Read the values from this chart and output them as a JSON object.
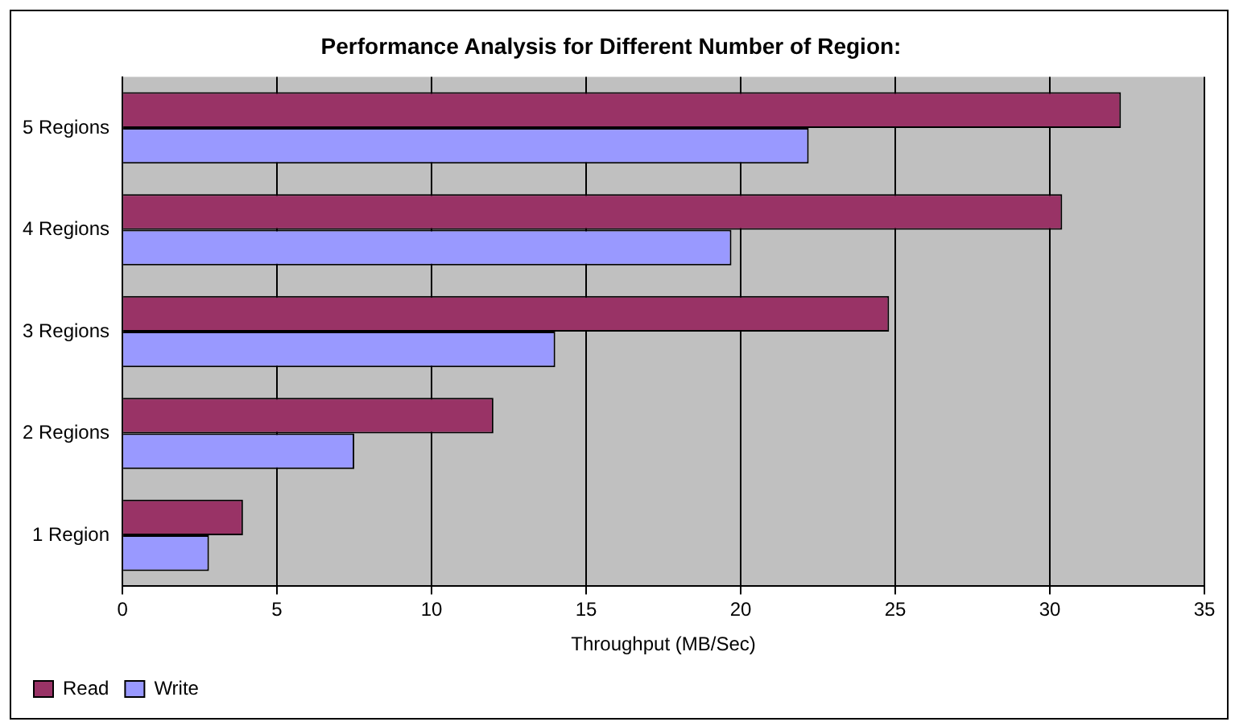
{
  "chart_data": {
    "type": "bar",
    "orientation": "horizontal",
    "title": "Performance Analysis for Different Number of Region:",
    "xlabel": "Throughput (MB/Sec)",
    "categories": [
      "5 Regions",
      "4 Regions",
      "3 Regions",
      "2 Regions",
      "1 Region"
    ],
    "series": [
      {
        "name": "Read",
        "color": "#993366",
        "values": [
          32.3,
          30.4,
          24.8,
          12.0,
          3.9
        ]
      },
      {
        "name": "Write",
        "color": "#9999ff",
        "values": [
          22.2,
          19.7,
          14.0,
          7.5,
          2.8
        ]
      }
    ],
    "xlim": [
      0,
      35
    ],
    "xticks": [
      0,
      5,
      10,
      15,
      20,
      25,
      30,
      35
    ],
    "grid": "x",
    "legend": "bottom left"
  }
}
